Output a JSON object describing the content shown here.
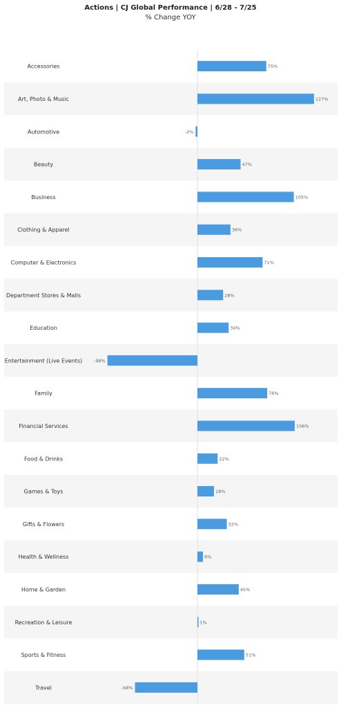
{
  "header": {
    "title": "Actions | CJ Global Performance |  6/28 - 7/25",
    "subtitle": "% Change YOY"
  },
  "chart_data": {
    "type": "bar",
    "orientation": "horizontal",
    "title": "Actions | CJ Global Performance |  6/28 - 7/25",
    "subtitle": "% Change YOY",
    "categories": [
      "Accessories",
      "Art, Photo & Music",
      "Automotive",
      "Beauty",
      "Business",
      "Clothing & Apparel",
      "Computer & Electronics",
      "Department Stores & Malls",
      "Education",
      "Entertainment (Live Events)",
      "Family",
      "Financial Services",
      "Food & Drinks",
      "Games & Toys",
      "Gifts & Flowers",
      "Health & Wellness",
      "Home & Garden",
      "Recreation & Leisure",
      "Sports & Fitness",
      "Travel"
    ],
    "values": [
      75,
      127,
      -2,
      47,
      105,
      36,
      71,
      28,
      34,
      -98,
      76,
      106,
      22,
      18,
      32,
      6,
      45,
      1,
      51,
      -68
    ],
    "value_labels": [
      "75%",
      "127%",
      "-2%",
      "47%",
      "105%",
      "36%",
      "71%",
      "28%",
      "34%",
      "-98%",
      "76%",
      "106%",
      "22%",
      "18%",
      "32%",
      "6%",
      "45%",
      "1%",
      "51%",
      "-68%"
    ],
    "unit": "%",
    "bar_color": "#4a9be0",
    "band_color": "#f5f5f5",
    "zero_line_color": "#e2e2e2",
    "xlim": [
      -98,
      127
    ],
    "grid": false,
    "legend": "none"
  }
}
